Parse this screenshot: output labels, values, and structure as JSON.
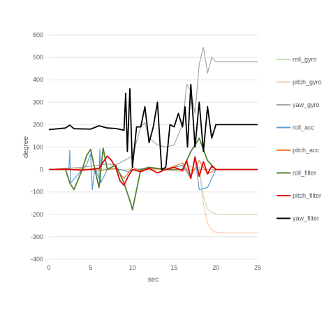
{
  "chart_data": {
    "type": "line",
    "title": "",
    "xlabel": "sec",
    "ylabel": "degree",
    "xlim": [
      0,
      25
    ],
    "ylim": [
      -400,
      600
    ],
    "xticks": [
      0,
      5,
      10,
      15,
      20,
      25
    ],
    "yticks": [
      -400,
      -300,
      -200,
      -100,
      0,
      100,
      200,
      300,
      400,
      500,
      600
    ],
    "grid": "horizontal",
    "legend_position": "right",
    "series": [
      {
        "name": "roll_gyro",
        "color": "#c5e0b4",
        "x": [
          0,
          2,
          4,
          6,
          8,
          10,
          12,
          14,
          16,
          17,
          18,
          18.5,
          19,
          19.5,
          20,
          21,
          23,
          25
        ],
        "y": [
          0,
          1,
          -2,
          3,
          -1,
          2,
          -3,
          4,
          15,
          -5,
          10,
          -120,
          -175,
          -190,
          -198,
          -200,
          -200,
          -200
        ]
      },
      {
        "name": "pitch_gyro",
        "color": "#f8cbad",
        "x": [
          0,
          2,
          4,
          6,
          8,
          10,
          12,
          14,
          16,
          17,
          18,
          18.5,
          19,
          19.5,
          20,
          21,
          23,
          25
        ],
        "y": [
          0,
          -1,
          2,
          -2,
          1,
          -2,
          3,
          -3,
          -10,
          15,
          -5,
          -150,
          -240,
          -270,
          -280,
          -283,
          -283,
          -283
        ]
      },
      {
        "name": "yaw_gyro",
        "color": "#a6a6a6",
        "x": [
          0,
          2,
          4,
          5,
          6,
          7,
          8,
          9,
          10,
          11,
          11.5,
          12,
          13,
          14,
          15,
          16,
          16.5,
          17,
          17.5,
          18,
          18.5,
          19,
          19.5,
          20,
          21,
          22,
          25
        ],
        "y": [
          0,
          5,
          10,
          15,
          20,
          25,
          20,
          40,
          60,
          190,
          210,
          140,
          110,
          100,
          110,
          200,
          380,
          350,
          250,
          470,
          545,
          430,
          500,
          480,
          480,
          480,
          480
        ]
      },
      {
        "name": "roll_acc",
        "color": "#5b9bd5",
        "x": [
          0,
          2.4,
          2.5,
          2.6,
          4,
          4.5,
          5,
          5.2,
          5.5,
          6,
          6.1,
          6.2,
          7,
          8,
          9.5,
          10,
          12,
          14,
          16,
          17,
          17.5,
          18,
          19,
          20,
          25
        ],
        "y": [
          0,
          0,
          85,
          -60,
          0,
          20,
          70,
          -90,
          10,
          -40,
          90,
          -60,
          0,
          5,
          -10,
          0,
          5,
          0,
          20,
          -40,
          60,
          -90,
          -80,
          0,
          0
        ]
      },
      {
        "name": "pitch_acc",
        "color": "#ed7d31",
        "x": [
          0,
          2,
          4,
          6,
          8,
          9,
          10,
          11,
          12,
          14,
          16,
          17,
          18,
          19,
          20,
          25
        ],
        "y": [
          0,
          -2,
          3,
          -5,
          5,
          -40,
          10,
          -5,
          5,
          0,
          30,
          -30,
          40,
          -20,
          0,
          0
        ]
      },
      {
        "name": "roll_filter",
        "color": "#548235",
        "x": [
          0,
          2,
          2.5,
          3,
          4,
          4.5,
          5,
          5.5,
          6,
          6.5,
          7,
          8,
          9,
          9.8,
          10,
          11,
          12,
          14,
          16,
          17,
          18,
          19,
          20,
          25
        ],
        "y": [
          0,
          0,
          -60,
          -90,
          0,
          60,
          90,
          0,
          -80,
          95,
          0,
          20,
          -60,
          -150,
          -180,
          0,
          10,
          0,
          0,
          80,
          140,
          40,
          0,
          0
        ]
      },
      {
        "name": "pitch_filter",
        "color": "#e00000",
        "x": [
          0,
          2,
          4,
          6,
          7,
          7.5,
          8,
          8.5,
          9,
          9.5,
          10,
          11,
          12,
          13,
          14,
          15,
          16,
          16.5,
          17,
          17.5,
          18,
          18.5,
          19,
          19.5,
          20,
          21,
          25
        ],
        "y": [
          0,
          2,
          -3,
          5,
          60,
          40,
          10,
          -50,
          -70,
          -30,
          0,
          -10,
          5,
          -15,
          0,
          10,
          -5,
          40,
          -40,
          55,
          -30,
          35,
          -20,
          15,
          0,
          0,
          0
        ]
      },
      {
        "name": "yaw_filter",
        "color": "#000000",
        "x": [
          0,
          2,
          2.5,
          3,
          5,
          6,
          7,
          8,
          9,
          9.2,
          9.4,
          9.7,
          10,
          10.5,
          11,
          11.5,
          12,
          12.5,
          13,
          13.5,
          14,
          14.5,
          15,
          15.5,
          16,
          16.3,
          16.6,
          17,
          17.5,
          18,
          18.5,
          19,
          19.5,
          20,
          21,
          25
        ],
        "y": [
          178,
          185,
          198,
          182,
          180,
          195,
          185,
          183,
          175,
          340,
          80,
          360,
          10,
          190,
          190,
          280,
          120,
          190,
          300,
          0,
          10,
          200,
          190,
          250,
          190,
          280,
          100,
          380,
          100,
          300,
          80,
          280,
          140,
          200,
          200,
          200
        ]
      }
    ]
  }
}
